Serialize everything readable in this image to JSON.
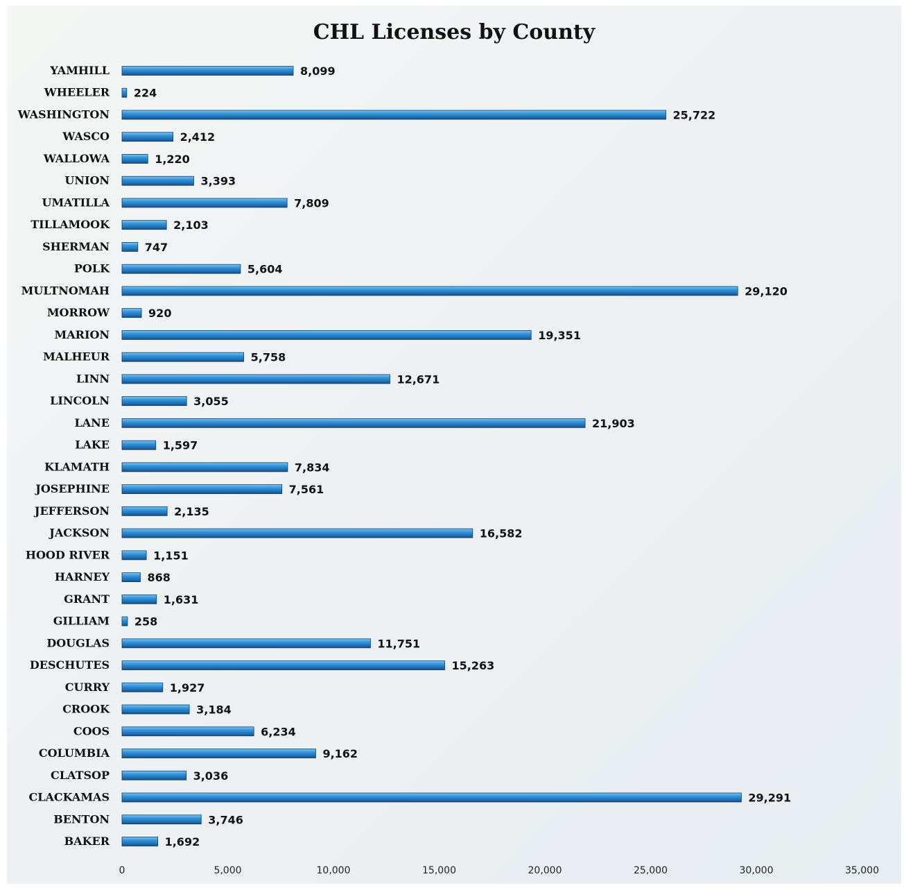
{
  "chart_data": {
    "type": "bar",
    "orientation": "horizontal",
    "title": "CHL Licenses by County",
    "xlabel": "",
    "ylabel": "",
    "xlim": [
      0,
      35000
    ],
    "x_ticks": [
      "0",
      "5,000",
      "10,000",
      "15,000",
      "20,000",
      "25,000",
      "30,000",
      "35,000"
    ],
    "grid": false,
    "legend": "none",
    "bar_color": "#2a86cc",
    "categories": [
      "YAMHILL",
      "WHEELER",
      "WASHINGTON",
      "WASCO",
      "WALLOWA",
      "UNION",
      "UMATILLA",
      "TILLAMOOK",
      "SHERMAN",
      "POLK",
      "MULTNOMAH",
      "MORROW",
      "MARION",
      "MALHEUR",
      "LINN",
      "LINCOLN",
      "LANE",
      "LAKE",
      "KLAMATH",
      "JOSEPHINE",
      "JEFFERSON",
      "JACKSON",
      "HOOD RIVER",
      "HARNEY",
      "GRANT",
      "GILLIAM",
      "DOUGLAS",
      "DESCHUTES",
      "CURRY",
      "CROOK",
      "COOS",
      "COLUMBIA",
      "CLATSOP",
      "CLACKAMAS",
      "BENTON",
      "BAKER"
    ],
    "values": [
      8099,
      224,
      25722,
      2412,
      1220,
      3393,
      7809,
      2103,
      747,
      5604,
      29120,
      920,
      19351,
      5758,
      12671,
      3055,
      21903,
      1597,
      7834,
      7561,
      2135,
      16582,
      1151,
      868,
      1631,
      258,
      11751,
      15263,
      1927,
      3184,
      6234,
      9162,
      3036,
      29291,
      3746,
      1692
    ],
    "data_labels": [
      "8,099",
      "224",
      "25,722",
      "2,412",
      "1,220",
      "3,393",
      "7,809",
      "2,103",
      "747",
      "5,604",
      "29,120",
      "920",
      "19,351",
      "5,758",
      "12,671",
      "3,055",
      "21,903",
      "1,597",
      "7,834",
      "7,561",
      "2,135",
      "16,582",
      "1,151",
      "868",
      "1,631",
      "258",
      "11,751",
      "15,263",
      "1,927",
      "3,184",
      "6,234",
      "9,162",
      "3,036",
      "29,291",
      "3,746",
      "1,692"
    ]
  }
}
